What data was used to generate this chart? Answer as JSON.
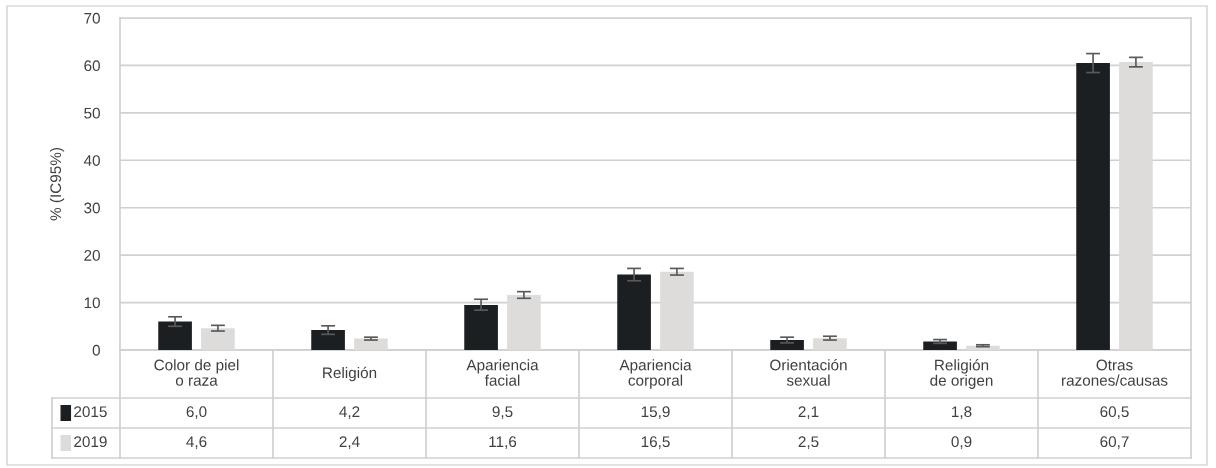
{
  "chart_data": {
    "type": "bar",
    "ylabel": "% (IC95%)",
    "categories": [
      "Color de piel\no raza",
      "Religión",
      "Apariencia\nfacial",
      "Apariencia\ncorporal",
      "Orientación\nsexual",
      "Religión\nde origen",
      "Otras\nrazones/causas"
    ],
    "series": [
      {
        "name": "2015",
        "color": "#1c1f22",
        "values": [
          6.0,
          4.2,
          9.5,
          15.9,
          2.1,
          1.8,
          60.5
        ],
        "errors": [
          [
            5.0,
            7.0
          ],
          [
            3.3,
            5.1
          ],
          [
            8.4,
            10.7
          ],
          [
            14.6,
            17.2
          ],
          [
            1.5,
            2.7
          ],
          [
            1.4,
            2.2
          ],
          [
            58.5,
            62.5
          ]
        ],
        "value_labels": [
          "6,0",
          "4,2",
          "9,5",
          "15,9",
          "2,1",
          "1,8",
          "60,5"
        ]
      },
      {
        "name": "2019",
        "color": "#dddcda",
        "values": [
          4.6,
          2.4,
          11.6,
          16.5,
          2.5,
          0.9,
          60.7
        ],
        "errors": [
          [
            4.0,
            5.2
          ],
          [
            2.1,
            2.7
          ],
          [
            10.9,
            12.3
          ],
          [
            15.8,
            17.2
          ],
          [
            2.1,
            2.9
          ],
          [
            0.7,
            1.1
          ],
          [
            59.7,
            61.7
          ]
        ],
        "value_labels": [
          "4,6",
          "2,4",
          "11,6",
          "16,5",
          "2,5",
          "0,9",
          "60,7"
        ]
      }
    ],
    "ylim": [
      0,
      70
    ],
    "yticks": [
      0,
      10,
      20,
      30,
      40,
      50,
      60,
      70
    ],
    "grid": "y",
    "legend": "bottom left"
  }
}
